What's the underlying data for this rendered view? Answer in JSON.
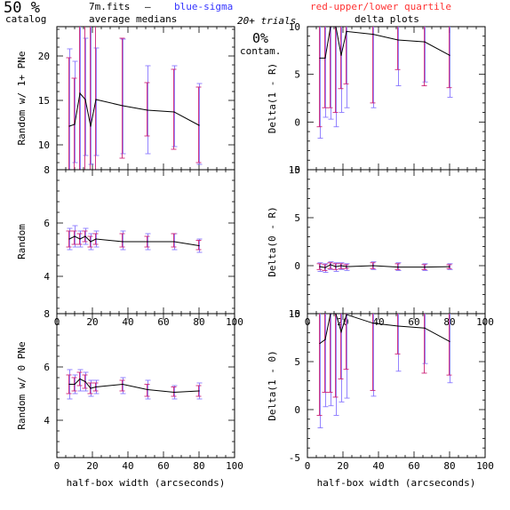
{
  "header": {
    "percent": "50 %",
    "catalog": "catalog",
    "filename": "7m.fits",
    "dash": "–",
    "blue_label": "blue-sigma",
    "red_label": "red-upper/lower quartile",
    "avg_medians": "average medians",
    "trials": "20+ trials",
    "delta_plots": "delta plots",
    "contam_pct": "0%",
    "contam_label": "contam.",
    "blue_color": "#3333ff",
    "red_color": "#ff3333"
  },
  "colors": {
    "median_line": "#000000",
    "blue_bar": "#8877ff",
    "red_bar": "#cc2277",
    "axes": "#000000"
  },
  "chart_data": [
    {
      "type": "line",
      "panel": "left-top",
      "ylabel": "Random w/ 1+ PNe",
      "xlabel": "",
      "xlim": [
        0,
        100
      ],
      "ylim": [
        7.2,
        23.3
      ],
      "yticks": [
        10,
        15,
        20
      ],
      "xticks": [
        0,
        20,
        40,
        60,
        80,
        100
      ],
      "show_xticklabels": false,
      "x": [
        7,
        10,
        13,
        16,
        19,
        22,
        37,
        51,
        66,
        80
      ],
      "y": [
        12.1,
        12.3,
        15.8,
        15.1,
        12.1,
        15.1,
        14.4,
        13.9,
        13.7,
        12.2
      ],
      "blue_err": [
        [
          6.6,
          20.8
        ],
        [
          8.0,
          19.4
        ],
        [
          5.8,
          23.3
        ],
        [
          8.8,
          22.0
        ],
        [
          7.8,
          23.3
        ],
        [
          8.8,
          20.9
        ],
        [
          9.0,
          21.9
        ],
        [
          9.0,
          18.9
        ],
        [
          9.8,
          18.9
        ],
        [
          7.8,
          16.9
        ]
      ],
      "red_err": [
        [
          4.0,
          19.8
        ],
        [
          5.5,
          17.5
        ],
        [
          4.5,
          23.3
        ],
        [
          3.5,
          23.3
        ],
        [
          6.0,
          23.3
        ],
        [
          6.5,
          23.3
        ],
        [
          8.5,
          22.0
        ],
        [
          11.0,
          17.0
        ],
        [
          9.5,
          18.5
        ],
        [
          8.0,
          16.5
        ]
      ]
    },
    {
      "type": "line",
      "panel": "right-top",
      "ylabel": "Delta(1 - R)",
      "xlabel": "",
      "xlim": [
        0,
        100
      ],
      "ylim": [
        -5,
        10
      ],
      "yticks": [
        -5,
        0,
        5,
        10
      ],
      "xticks": [
        0,
        20,
        40,
        60,
        80,
        100
      ],
      "show_xticklabels": false,
      "x": [
        7,
        10,
        13,
        16,
        19,
        22,
        37,
        51,
        66,
        80
      ],
      "y": [
        6.7,
        6.7,
        10.0,
        10.0,
        7.0,
        9.5,
        9.2,
        8.6,
        8.4,
        7.0
      ],
      "blue_err": [
        [
          -1.7,
          10
        ],
        [
          0.5,
          10
        ],
        [
          0.3,
          10
        ],
        [
          -0.5,
          10
        ],
        [
          1.0,
          10
        ],
        [
          1.5,
          10
        ],
        [
          1.5,
          10
        ],
        [
          3.8,
          10
        ],
        [
          4.2,
          10
        ],
        [
          2.6,
          10
        ]
      ],
      "red_err": [
        [
          -0.5,
          10
        ],
        [
          1.5,
          10
        ],
        [
          1.5,
          10
        ],
        [
          1.0,
          10
        ],
        [
          3.5,
          10
        ],
        [
          4.0,
          10
        ],
        [
          2.0,
          10
        ],
        [
          5.5,
          10
        ],
        [
          3.8,
          10
        ],
        [
          3.6,
          10
        ]
      ]
    },
    {
      "type": "line",
      "panel": "left-middle",
      "ylabel": "Random",
      "xlabel": "",
      "xlim": [
        0,
        100
      ],
      "ylim": [
        2.6,
        8
      ],
      "yticks": [
        4,
        6,
        8
      ],
      "xticks": [
        0,
        20,
        40,
        60,
        80,
        100
      ],
      "show_xticklabels": true,
      "xticklabels": [
        "0",
        "20",
        "40",
        "60",
        "80",
        "100"
      ],
      "x": [
        7,
        10,
        13,
        16,
        19,
        22,
        37,
        51,
        66,
        80
      ],
      "y": [
        5.4,
        5.5,
        5.4,
        5.5,
        5.3,
        5.4,
        5.3,
        5.3,
        5.3,
        5.15
      ],
      "blue_err": [
        [
          5.0,
          5.8
        ],
        [
          5.1,
          5.9
        ],
        [
          5.1,
          5.7
        ],
        [
          5.2,
          5.8
        ],
        [
          5.0,
          5.6
        ],
        [
          5.1,
          5.7
        ],
        [
          5.0,
          5.7
        ],
        [
          5.0,
          5.6
        ],
        [
          5.0,
          5.6
        ],
        [
          4.9,
          5.4
        ]
      ],
      "red_err": [
        [
          5.1,
          5.7
        ],
        [
          5.2,
          5.7
        ],
        [
          5.2,
          5.6
        ],
        [
          5.3,
          5.7
        ],
        [
          5.1,
          5.5
        ],
        [
          5.2,
          5.6
        ],
        [
          5.1,
          5.6
        ],
        [
          5.1,
          5.5
        ],
        [
          5.1,
          5.6
        ],
        [
          5.0,
          5.35
        ]
      ]
    },
    {
      "type": "line",
      "panel": "right-middle",
      "ylabel": "Delta(0 - R)",
      "xlabel": "",
      "xlim": [
        0,
        100
      ],
      "ylim": [
        -5,
        10
      ],
      "yticks": [
        -5,
        0,
        5,
        10
      ],
      "xticks": [
        0,
        20,
        40,
        60,
        80,
        100
      ],
      "show_xticklabels": true,
      "xticklabels": [
        "0",
        "20",
        "40",
        "60",
        "80",
        "100"
      ],
      "x": [
        7,
        10,
        13,
        16,
        19,
        22,
        37,
        51,
        66,
        80
      ],
      "y": [
        -0.1,
        -0.2,
        0.1,
        -0.1,
        0.0,
        -0.1,
        0.0,
        -0.15,
        -0.15,
        -0.1
      ],
      "blue_err": [
        [
          -0.6,
          0.3
        ],
        [
          -0.7,
          0.2
        ],
        [
          -0.4,
          0.4
        ],
        [
          -0.6,
          0.3
        ],
        [
          -0.4,
          0.3
        ],
        [
          -0.5,
          0.2
        ],
        [
          -0.4,
          0.4
        ],
        [
          -0.5,
          0.3
        ],
        [
          -0.5,
          0.2
        ],
        [
          -0.4,
          0.2
        ]
      ],
      "red_err": [
        [
          -0.4,
          0.2
        ],
        [
          -0.5,
          0.1
        ],
        [
          -0.3,
          0.3
        ],
        [
          -0.4,
          0.2
        ],
        [
          -0.3,
          0.2
        ],
        [
          -0.3,
          0.1
        ],
        [
          -0.3,
          0.3
        ],
        [
          -0.4,
          0.2
        ],
        [
          -0.4,
          0.1
        ],
        [
          -0.3,
          0.1
        ]
      ]
    },
    {
      "type": "line",
      "panel": "left-bottom",
      "ylabel": "Random w/ 0 PNe",
      "xlabel": "half-box width (arcseconds)",
      "xlim": [
        0,
        100
      ],
      "ylim": [
        2.6,
        8
      ],
      "yticks": [
        4,
        6,
        8
      ],
      "xticks": [
        0,
        20,
        40,
        60,
        80,
        100
      ],
      "show_xticklabels": true,
      "xticklabels": [
        "0",
        "20",
        "40",
        "60",
        "80",
        "100"
      ],
      "x": [
        7,
        10,
        13,
        16,
        19,
        22,
        37,
        51,
        66,
        80
      ],
      "y": [
        5.35,
        5.35,
        5.55,
        5.45,
        5.2,
        5.25,
        5.35,
        5.15,
        5.05,
        5.1
      ],
      "blue_err": [
        [
          4.8,
          5.9
        ],
        [
          5.0,
          5.7
        ],
        [
          5.1,
          5.9
        ],
        [
          5.1,
          5.8
        ],
        [
          4.9,
          5.5
        ],
        [
          5.0,
          5.5
        ],
        [
          5.0,
          5.6
        ],
        [
          4.8,
          5.5
        ],
        [
          4.8,
          5.3
        ],
        [
          4.8,
          5.4
        ]
      ],
      "red_err": [
        [
          5.0,
          5.7
        ],
        [
          5.1,
          5.6
        ],
        [
          5.3,
          5.8
        ],
        [
          5.2,
          5.7
        ],
        [
          5.0,
          5.4
        ],
        [
          5.1,
          5.4
        ],
        [
          5.1,
          5.5
        ],
        [
          4.9,
          5.35
        ],
        [
          4.9,
          5.25
        ],
        [
          4.9,
          5.3
        ]
      ]
    },
    {
      "type": "line",
      "panel": "right-bottom",
      "ylabel": "Delta(1 - 0)",
      "xlabel": "half-box width (arcseconds)",
      "xlim": [
        0,
        100
      ],
      "ylim": [
        -5,
        10
      ],
      "yticks": [
        -5,
        0,
        5,
        10
      ],
      "xticks": [
        0,
        20,
        40,
        60,
        80,
        100
      ],
      "show_xticklabels": true,
      "xticklabels": [
        "0",
        "20",
        "40",
        "60",
        "80",
        "100"
      ],
      "x": [
        7,
        10,
        13,
        16,
        19,
        22,
        37,
        51,
        66,
        80
      ],
      "y": [
        6.9,
        7.3,
        10.0,
        10.0,
        8.1,
        9.9,
        9.0,
        8.7,
        8.5,
        7.1
      ],
      "blue_err": [
        [
          -1.9,
          10
        ],
        [
          0.3,
          10
        ],
        [
          0.4,
          10
        ],
        [
          -0.6,
          10
        ],
        [
          0.8,
          10
        ],
        [
          1.2,
          10
        ],
        [
          1.4,
          10
        ],
        [
          4.0,
          10
        ],
        [
          4.8,
          10
        ],
        [
          2.8,
          10
        ]
      ],
      "red_err": [
        [
          -0.6,
          10
        ],
        [
          1.8,
          10
        ],
        [
          1.8,
          10
        ],
        [
          1.3,
          10
        ],
        [
          3.2,
          10
        ],
        [
          4.2,
          10
        ],
        [
          2.0,
          10
        ],
        [
          5.8,
          10
        ],
        [
          3.8,
          10
        ],
        [
          3.6,
          10
        ]
      ]
    }
  ]
}
